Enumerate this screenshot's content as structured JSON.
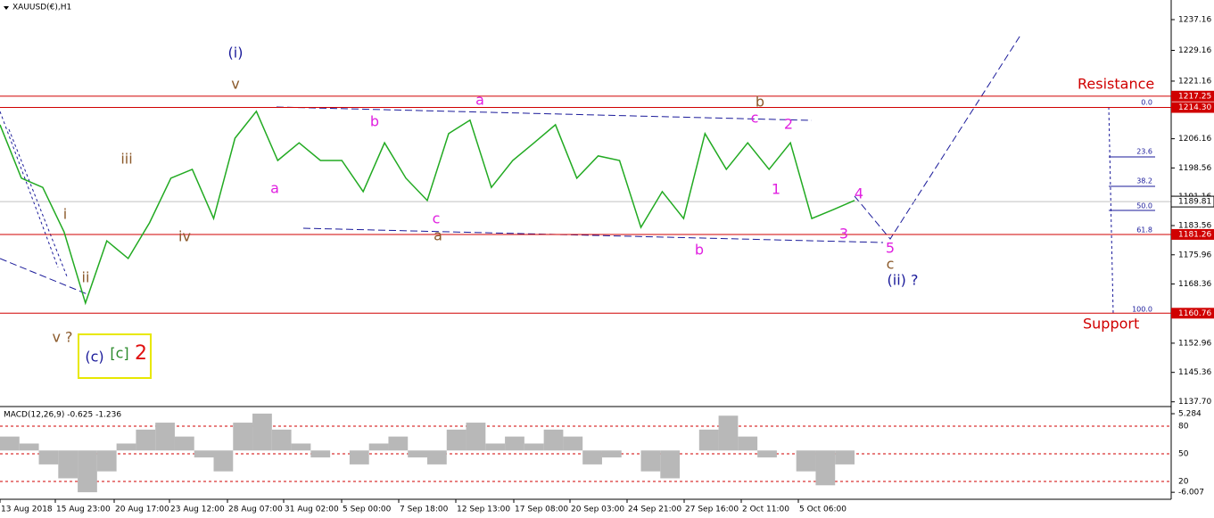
{
  "chart_data": {
    "type": "line",
    "title": "XAUUSD(€),H1",
    "series": [
      {
        "name": "XAUUSD",
        "color": "#22aa22",
        "values": [
          1209.8,
          1195.9,
          1193.5,
          1181.9,
          1163.4,
          1179.6,
          1175.0,
          1184.3,
          1195.9,
          1198.2,
          1185.4,
          1206.3,
          1213.3,
          1200.5,
          1205.1,
          1200.5,
          1200.5,
          1192.4,
          1205.1,
          1195.9,
          1190.1,
          1207.5,
          1211.0,
          1193.5,
          1200.5,
          1205.1,
          1209.8,
          1195.9,
          1201.7,
          1200.5,
          1183.1,
          1192.4,
          1185.4,
          1207.5,
          1198.2,
          1205.1,
          1198.2,
          1205.1,
          1185.4,
          1187.7,
          1190.1
        ]
      }
    ],
    "ylim": [
      1136.7,
      1241.8
    ],
    "yticks": [
      1237.16,
      1229.16,
      1221.16,
      1206.16,
      1198.56,
      1191.16,
      1183.56,
      1175.96,
      1168.36,
      1152.96,
      1145.36,
      {
        "value": 1137.7,
        "label": "1137.70"
      }
    ],
    "levels": [
      {
        "value": 1217.25,
        "label": "1217.25"
      },
      {
        "value": 1214.3,
        "label": "1214.30"
      },
      {
        "value": 1181.26,
        "label": "1181.26"
      },
      {
        "value": 1160.76,
        "label": "1160.76"
      }
    ],
    "current": {
      "value": 1189.81,
      "label": "1189.81"
    },
    "fib_labels": [
      "0.0",
      "23.6",
      "38.2",
      "50.0",
      "61.8",
      "100.0"
    ],
    "resistance": "Resistance",
    "support": "Support",
    "annotations": [
      "(i)",
      "v",
      "iii",
      "i",
      "ii",
      "iv",
      "v ?",
      "a",
      "b",
      "c",
      "a",
      "a",
      "b",
      "c",
      "2",
      "1",
      "b",
      "3",
      "4",
      "5",
      "c",
      "(ii) ?",
      "(c)",
      "[c]",
      "2"
    ],
    "xtick_labels": [
      "13 Aug 2018",
      "15 Aug 23:00",
      "20 Aug 17:00",
      "23 Aug 12:00",
      "28 Aug 07:00",
      "31 Aug 02:00",
      "5 Sep 00:00",
      "7 Sep 18:00",
      "12 Sep 13:00",
      "17 Sep 08:00",
      "20 Sep 03:00",
      "24 Sep 21:00",
      "27 Sep 16:00",
      "2 Oct 11:00",
      "5 Oct 06:00"
    ],
    "macd": {
      "title": "MACD(12,26,9) -0.625 -1.236",
      "ylim": [
        -6.5,
        5.8
      ],
      "yticks": [
        5.284,
        -6.007
      ],
      "level_labels": [
        "80",
        "50",
        "20"
      ],
      "values": [
        2,
        1,
        -2,
        -4,
        -6,
        -3,
        1,
        3,
        4,
        2,
        -1,
        -3,
        4,
        5.3,
        3,
        1,
        -1,
        0,
        -2,
        1,
        2,
        -1,
        -2,
        3,
        4,
        1,
        2,
        1,
        3,
        2,
        -2,
        -1,
        0,
        -3,
        -4,
        0,
        3,
        5,
        2,
        -1,
        0,
        -3,
        -5,
        -2
      ]
    }
  }
}
